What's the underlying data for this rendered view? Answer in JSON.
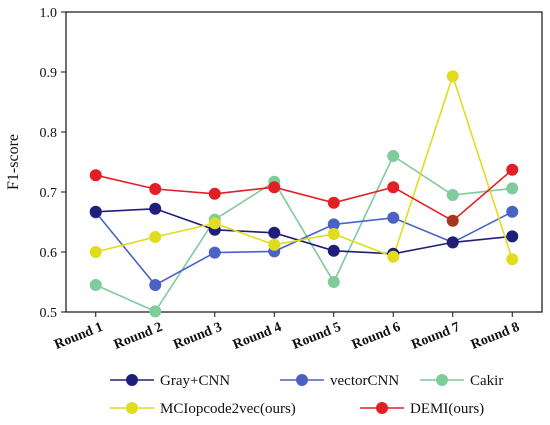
{
  "chart_data": {
    "type": "line",
    "ylabel": "F1-score",
    "xlabel": "",
    "ylim": [
      0.5,
      1.0
    ],
    "yticks": [
      "0.5",
      "0.6",
      "0.7",
      "0.8",
      "0.9",
      "1.0"
    ],
    "categories": [
      "Round 1",
      "Round 2",
      "Round 3",
      "Round 4",
      "Round 5",
      "Round 6",
      "Round 7",
      "Round 8"
    ],
    "grid": false,
    "legend_position": "bottom",
    "series": [
      {
        "name": "Gray+CNN",
        "color": "#1f1f7a",
        "values": [
          0.667,
          0.672,
          0.637,
          0.632,
          0.602,
          0.597,
          0.616,
          0.626
        ]
      },
      {
        "name": "vectorCNN",
        "color": "#4a62c4",
        "values": [
          0.666,
          0.545,
          0.599,
          0.601,
          0.646,
          0.657,
          0.616,
          0.667
        ]
      },
      {
        "name": "Cakir",
        "color": "#7fcb9a",
        "values": [
          0.545,
          0.501,
          0.654,
          0.717,
          0.55,
          0.76,
          0.695,
          0.706
        ]
      },
      {
        "name": "MCIopcode2vec(ours)",
        "color": "#e2dc1e",
        "values": [
          0.6,
          0.625,
          0.648,
          0.612,
          0.63,
          0.592,
          0.893,
          0.588
        ]
      },
      {
        "name": "DEMI(ours)",
        "color": "#e31f26",
        "values": [
          0.728,
          0.705,
          0.697,
          0.708,
          0.682,
          0.708,
          0.652,
          0.737
        ]
      }
    ],
    "marker_colors": {
      "DEMI(ours)": [
        "#e31f26",
        "#e31f26",
        "#e31f26",
        "#e31f26",
        "#e31f26",
        "#e31f26",
        "#a8361f",
        "#e31f26"
      ]
    }
  }
}
